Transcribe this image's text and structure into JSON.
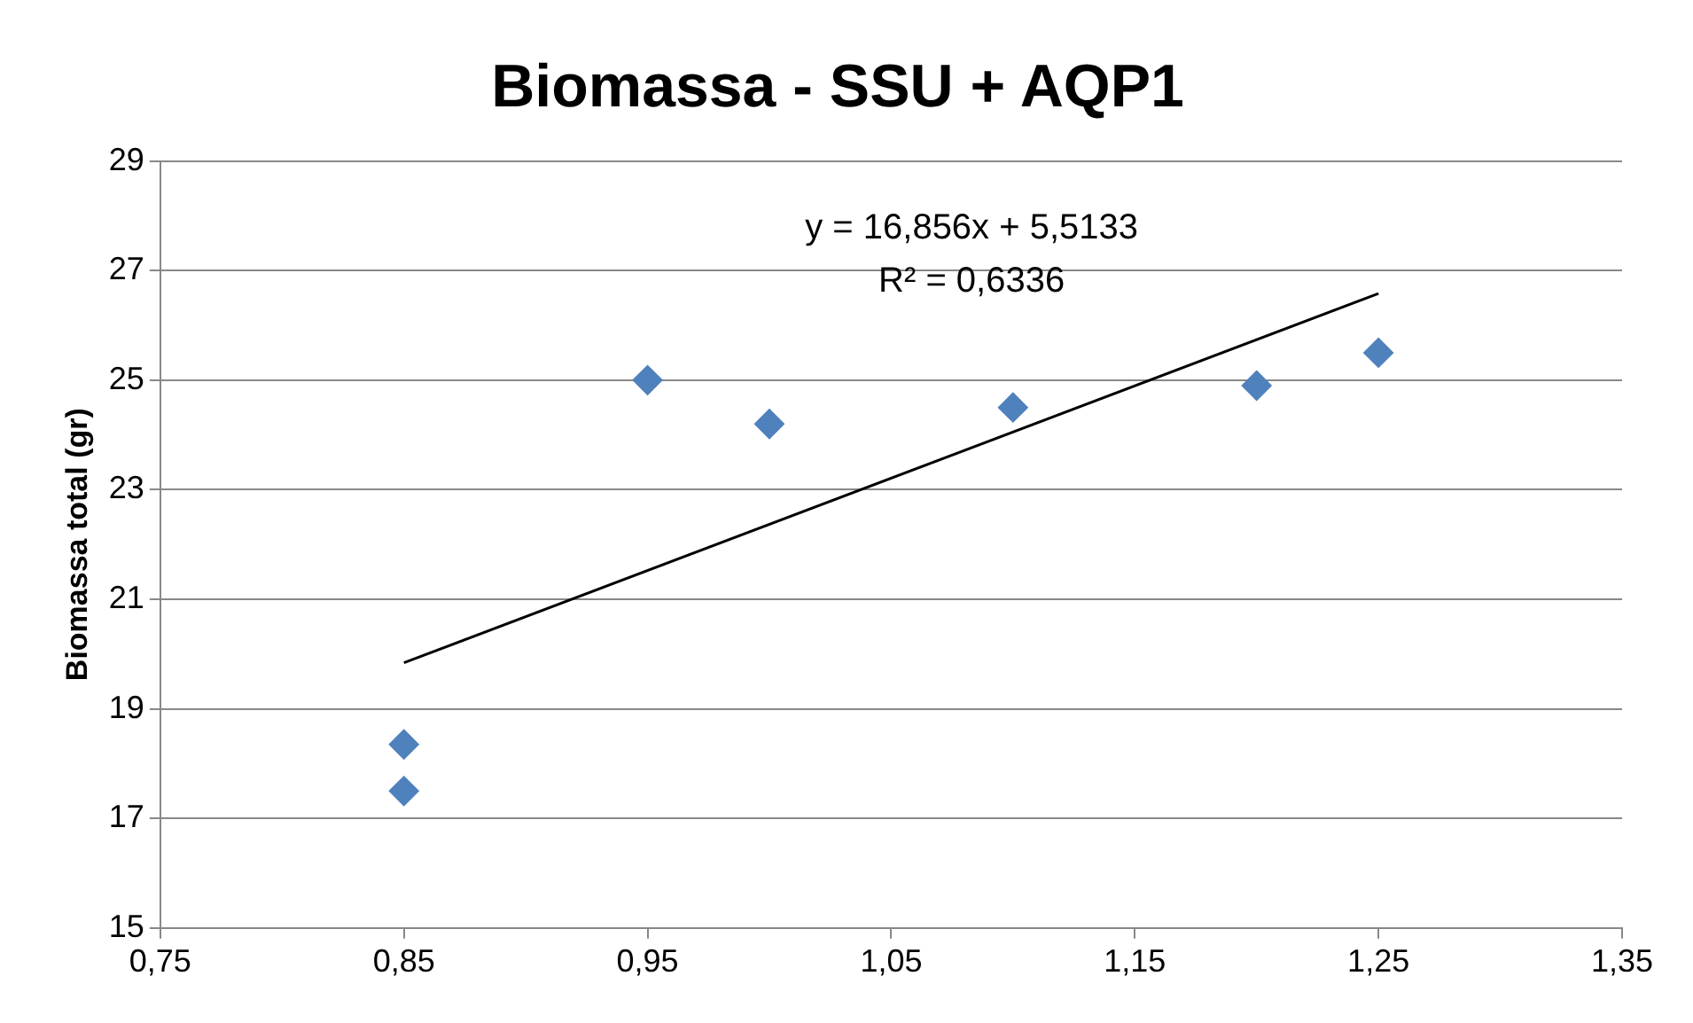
{
  "chart_data": {
    "type": "scatter",
    "title": "Biomassa - SSU + AQP1",
    "ylabel": "Biomassa total (gr)",
    "series": [
      {
        "color": "#4f81bd",
        "marker": "diamond",
        "x": [
          0.85,
          0.85,
          0.95,
          1.0,
          1.1,
          1.2,
          1.25
        ],
        "values": [
          18.35,
          17.5,
          25.0,
          24.2,
          24.5,
          24.9,
          25.5
        ]
      },
      {
        "type": "line",
        "color": "#000000",
        "marker": "none",
        "line_style": "solid",
        "x": [
          0.85,
          1.25
        ],
        "values": [
          19.84,
          26.58
        ]
      }
    ],
    "annotations": [
      "y = 16,856x + 5,5133",
      "R² = 0,6336"
    ],
    "xlim": [
      0.75,
      1.35
    ],
    "xticks": [
      {
        "value": 0.75,
        "label": "0,75"
      },
      {
        "value": 0.85,
        "label": "0,85"
      },
      {
        "value": 0.95,
        "label": "0,95"
      },
      {
        "value": 1.05,
        "label": "1,05"
      },
      {
        "value": 1.15,
        "label": "1,15"
      },
      {
        "value": 1.25,
        "label": "1,25"
      },
      {
        "value": 1.35,
        "label": "1,35"
      }
    ],
    "ylim": [
      15,
      29
    ],
    "yticks": [
      15,
      17,
      19,
      21,
      23,
      25,
      27,
      29
    ],
    "grid": "y",
    "legend": false
  }
}
